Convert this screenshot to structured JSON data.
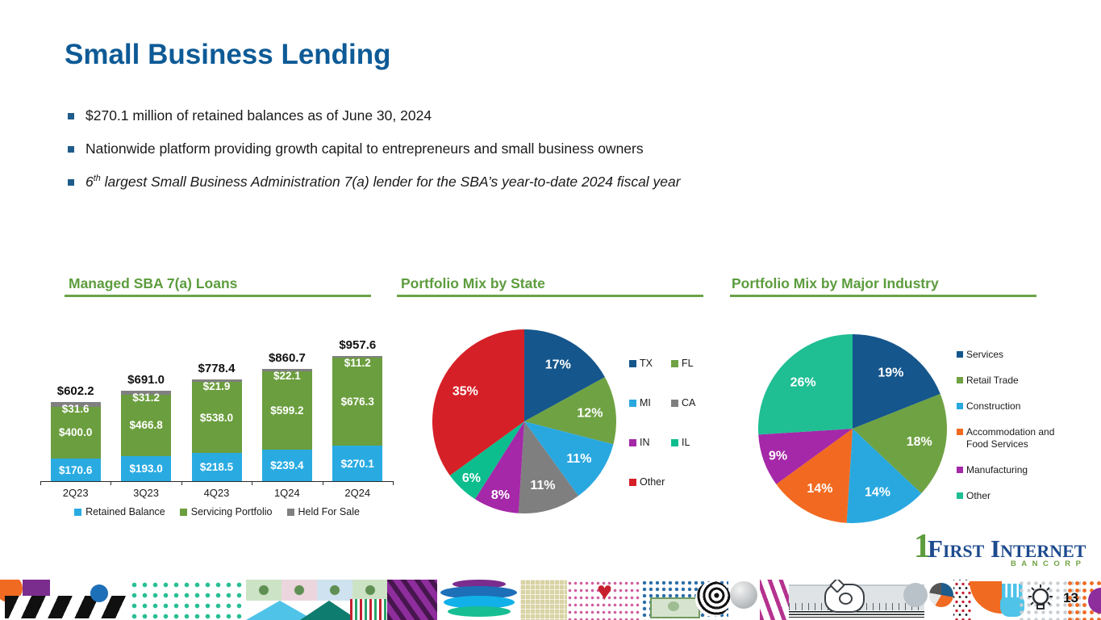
{
  "slide": {
    "title": "Small Business Lending",
    "bullets": [
      {
        "text": "$270.1 million of retained balances as of June 30, 2024"
      },
      {
        "text": "Nationwide platform providing growth capital to entrepreneurs and small business owners"
      },
      {
        "prefix": "6",
        "superscript": "th",
        "text": " largest Small Business Administration 7(a) lender for the SBA’s year-to-date 2024 fiscal year"
      }
    ],
    "page_number": "13"
  },
  "logo": {
    "numeral": "1",
    "name": "First Internet",
    "sub": "BANCORP"
  },
  "colors": {
    "title_blue": "#0D5A96",
    "heading_green": "#5C9C3D",
    "bullet_square": "#1F5C8B",
    "logo_navy": "#1E4B8F",
    "logo_green": "#6FA243"
  },
  "icons": {
    "heart_glyph": "♥"
  },
  "chart_data": [
    {
      "type": "bar",
      "title": "Managed SBA 7(a) Loans",
      "stacked": true,
      "unit": "$ millions",
      "categories": [
        "2Q23",
        "3Q23",
        "4Q23",
        "1Q24",
        "2Q24"
      ],
      "series": [
        {
          "name": "Retained Balance",
          "color": "#29ABE2",
          "values": [
            170.6,
            193.0,
            218.5,
            239.4,
            270.1
          ]
        },
        {
          "name": "Servicing Portfolio",
          "color": "#6B9E3E",
          "values": [
            400.0,
            466.8,
            538.0,
            599.2,
            676.3
          ]
        },
        {
          "name": "Held For Sale",
          "color": "#808080",
          "values": [
            31.6,
            31.2,
            21.9,
            22.1,
            11.2
          ]
        }
      ],
      "totals": [
        602.2,
        691.0,
        778.4,
        860.7,
        957.6
      ],
      "value_prefix": "$",
      "legend_position": "bottom",
      "grid": false
    },
    {
      "type": "pie",
      "title": "Portfolio Mix by State",
      "labels": [
        "TX",
        "FL",
        "MI",
        "CA",
        "IN",
        "IL",
        "Other"
      ],
      "values": [
        17,
        12,
        11,
        11,
        8,
        6,
        35
      ],
      "colors": [
        "#15568C",
        "#6FA243",
        "#29A8E0",
        "#7F7F7F",
        "#A428A8",
        "#0CBD8E",
        "#D62027"
      ],
      "value_suffix": "%",
      "start_angle": "top",
      "direction": "clockwise",
      "legend_position": "right-two-column"
    },
    {
      "type": "pie",
      "title": "Portfolio Mix by Major Industry",
      "labels": [
        "Services",
        "Retail Trade",
        "Construction",
        "Accommodation and Food Services",
        "Manufacturing",
        "Other"
      ],
      "values": [
        19,
        18,
        14,
        14,
        9,
        26
      ],
      "colors": [
        "#15568C",
        "#6FA243",
        "#29A8E0",
        "#F26A21",
        "#A428A8",
        "#1FBE93"
      ],
      "value_suffix": "%",
      "start_angle": "top",
      "direction": "clockwise",
      "legend_position": "right-one-column"
    }
  ]
}
